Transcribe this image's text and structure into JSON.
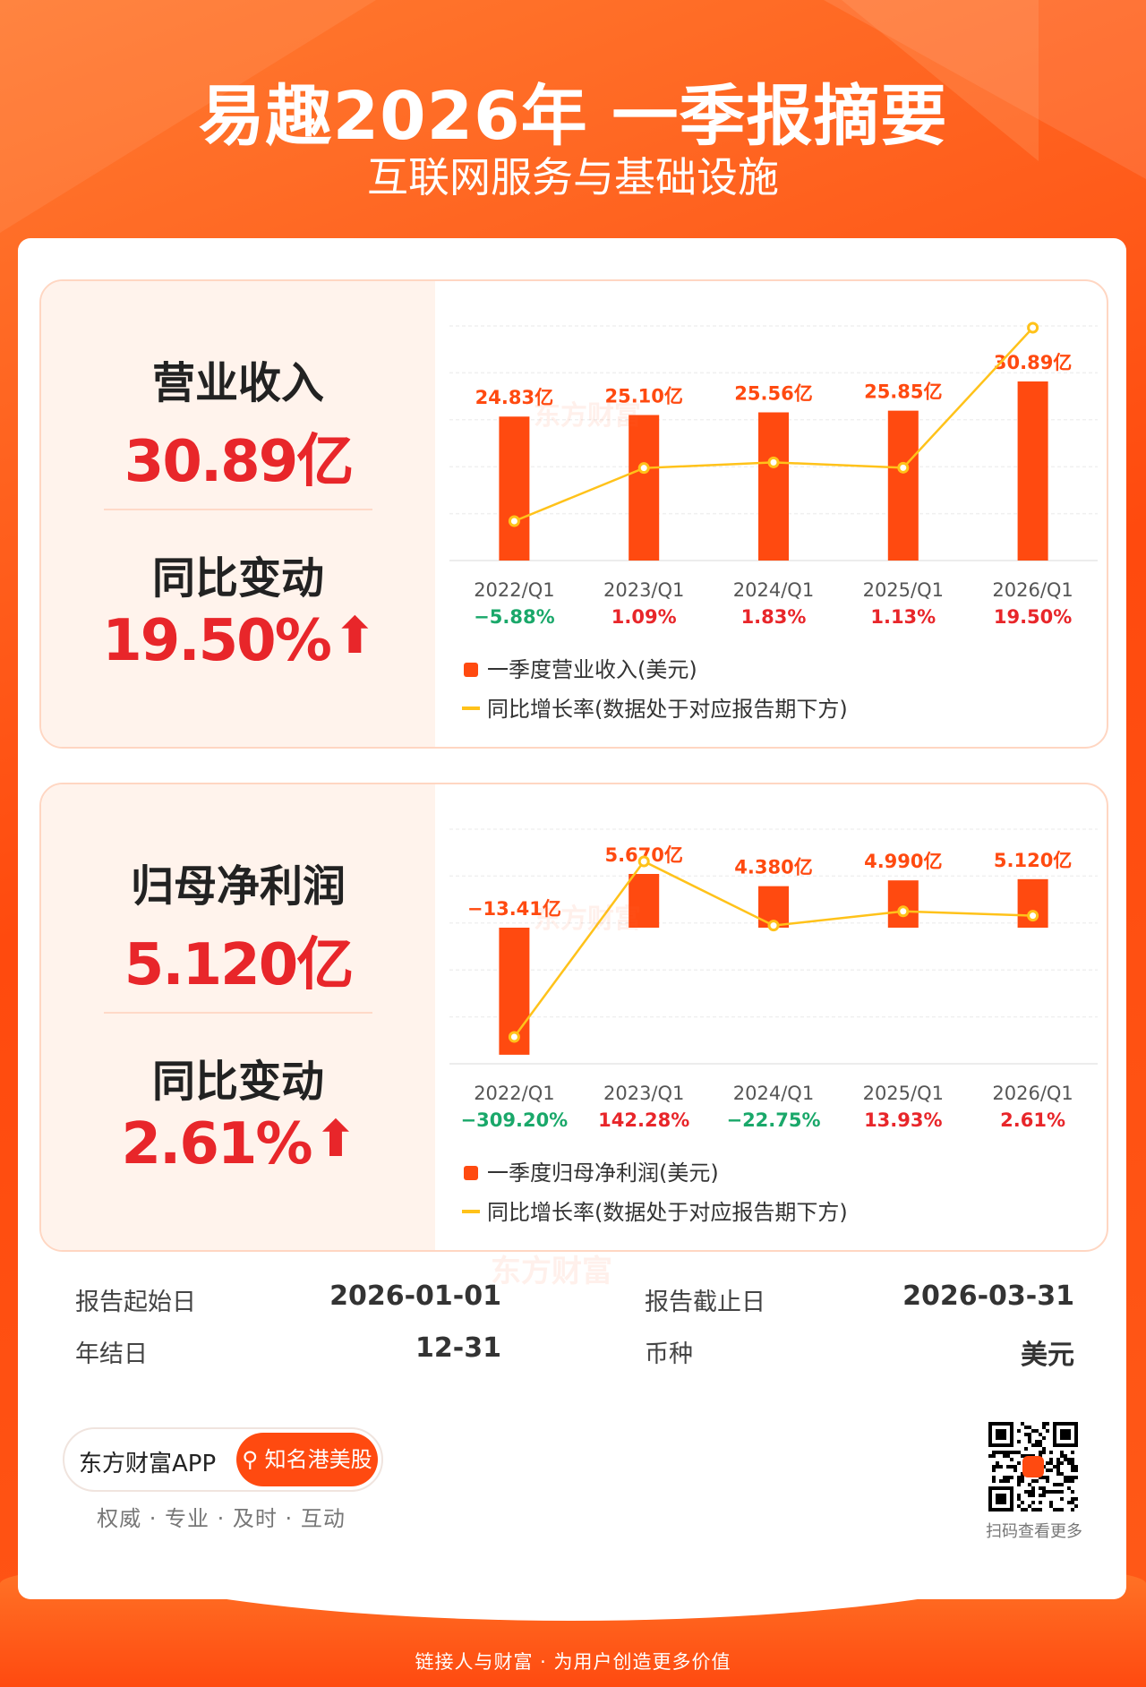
{
  "header": {
    "title": "易趣2026年 一季报摘要",
    "subtitle": "互联网服务与基础设施"
  },
  "revenue_panel": {
    "metric_title": "营业收入",
    "metric_value": "30.89亿",
    "change_title": "同比变动",
    "change_value": "19.50%"
  },
  "profit_panel": {
    "metric_title": "归母净利润",
    "metric_value": "5.120亿",
    "change_title": "同比变动",
    "change_value": "2.61%"
  },
  "chart_data": [
    {
      "type": "bar",
      "categories": [
        "2022/Q1",
        "2023/Q1",
        "2024/Q1",
        "2025/Q1",
        "2026/Q1"
      ],
      "values": [
        24.83,
        25.1,
        25.56,
        25.85,
        30.89
      ],
      "bar_labels": [
        "24.83亿",
        "25.10亿",
        "25.56亿",
        "25.85亿",
        "30.89亿"
      ],
      "growth_rate": [
        -5.88,
        1.09,
        1.83,
        1.13,
        19.5
      ],
      "growth_labels": [
        "−5.88%",
        "1.09%",
        "1.83%",
        "1.13%",
        "19.50%"
      ],
      "legend": [
        "一季度营业收入(美元)",
        "同比增长率(数据处于对应报告期下方)"
      ],
      "bar_color": "#ff4a10",
      "line_color": "#ffc21a",
      "positive_color": "#e8262a",
      "negative_color": "#1aa86a"
    },
    {
      "type": "bar",
      "categories": [
        "2022/Q1",
        "2023/Q1",
        "2024/Q1",
        "2025/Q1",
        "2026/Q1"
      ],
      "values": [
        -13.41,
        5.67,
        4.38,
        4.99,
        5.12
      ],
      "bar_labels": [
        "−13.41亿",
        "5.670亿",
        "4.380亿",
        "4.990亿",
        "5.120亿"
      ],
      "growth_rate": [
        -309.2,
        142.28,
        -22.75,
        13.93,
        2.61
      ],
      "growth_labels": [
        "−309.20%",
        "142.28%",
        "−22.75%",
        "13.93%",
        "2.61%"
      ],
      "legend": [
        "一季度归母净利润(美元)",
        "同比增长率(数据处于对应报告期下方)"
      ],
      "bar_color": "#ff4a10",
      "line_color": "#ffc21a",
      "positive_color": "#e8262a",
      "negative_color": "#1aa86a"
    }
  ],
  "watermark": "东方财富",
  "info": {
    "start_label": "报告起始日",
    "start_value": "2026-01-01",
    "end_label": "报告截止日",
    "end_value": "2026-03-31",
    "yearend_label": "年结日",
    "yearend_value": "12-31",
    "currency_label": "币种",
    "currency_value": "美元"
  },
  "app": {
    "name": "东方财富APP",
    "button": "知名港美股",
    "slogan": "权威 · 专业 · 及时 · 互动",
    "qr_caption": "扫码查看更多"
  },
  "footer": "链接人与财富 · 为用户创造更多价值"
}
